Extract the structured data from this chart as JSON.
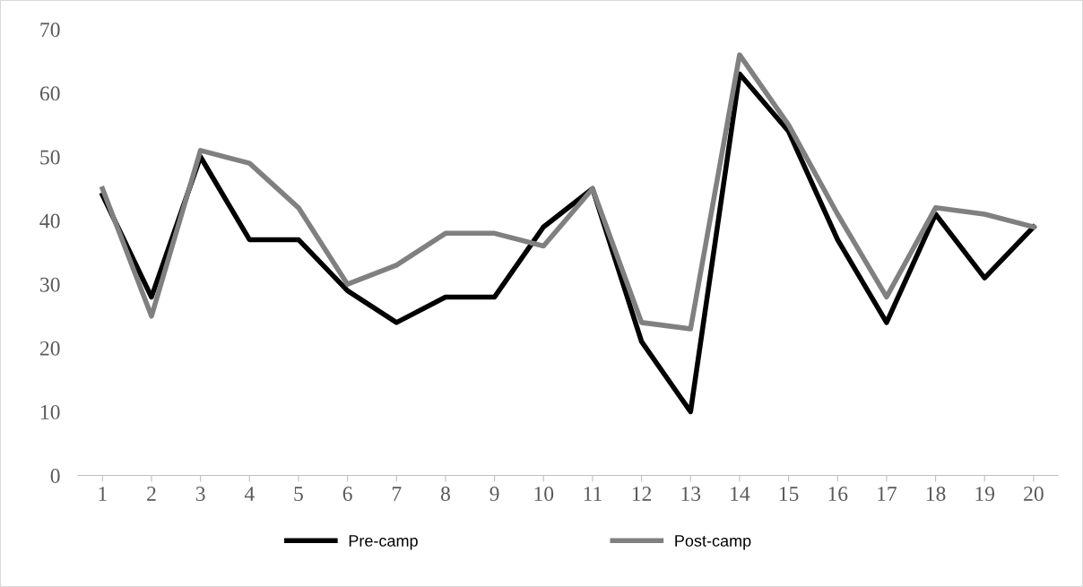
{
  "chart_data": {
    "type": "line",
    "categories": [
      "1",
      "2",
      "3",
      "4",
      "5",
      "6",
      "7",
      "8",
      "9",
      "10",
      "11",
      "12",
      "13",
      "14",
      "15",
      "16",
      "17",
      "18",
      "19",
      "20"
    ],
    "series": [
      {
        "name": "Pre-camp",
        "color": "#000000",
        "values": [
          44,
          28,
          50,
          37,
          37,
          29,
          24,
          28,
          28,
          39,
          45,
          21,
          10,
          63,
          54,
          37,
          24,
          41,
          31,
          39
        ]
      },
      {
        "name": "Post-camp",
        "color": "#808080",
        "values": [
          45,
          25,
          51,
          49,
          42,
          30,
          33,
          38,
          38,
          36,
          45,
          24,
          23,
          66,
          55,
          41,
          28,
          42,
          41,
          39
        ]
      }
    ],
    "ylim": [
      0,
      70
    ],
    "yticks": [
      0,
      10,
      20,
      30,
      40,
      50,
      60,
      70
    ],
    "grid": false,
    "legend": "bottom",
    "marker": "none",
    "line_style": "solid"
  }
}
